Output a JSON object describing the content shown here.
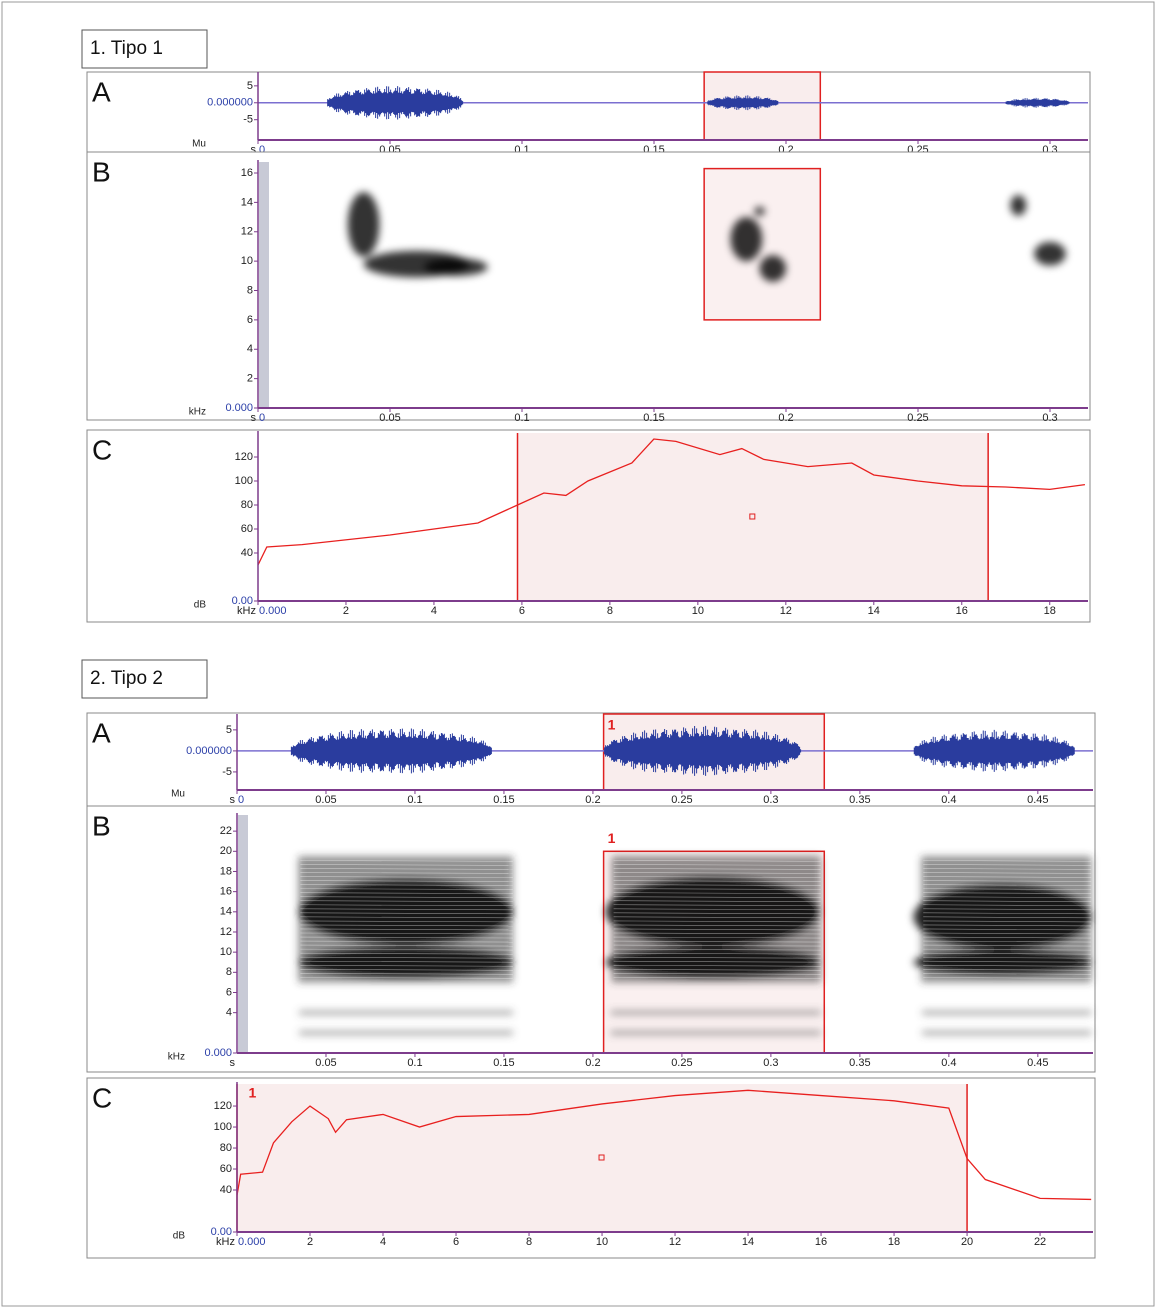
{
  "figures": [
    {
      "title": "1. Tipo 1",
      "waveform": {
        "type": "waveform",
        "letter": "A",
        "unit": "Mu",
        "x_unit": "s",
        "ylim": [
          -11,
          8.5
        ],
        "yticks": [
          5,
          {
            "value": 0,
            "label": "0.000000"
          },
          -5
        ],
        "xlim": [
          0,
          0.3144
        ],
        "xticks": [
          0,
          0.05,
          0.1,
          0.15,
          0.2,
          0.25,
          0.3
        ]
      },
      "spectrogram": {
        "type": "spectrogram",
        "letter": "B",
        "unit": "kHz",
        "x_unit": "s",
        "ylim": [
          0,
          16.75
        ],
        "yticks": [
          {
            "value": 0,
            "label": "0.000"
          },
          2,
          4,
          6,
          8,
          10,
          12,
          14,
          16
        ],
        "xlim": [
          0,
          0.3144
        ],
        "xticks": [
          0,
          0.05,
          0.1,
          0.15,
          0.2,
          0.25,
          0.3
        ]
      },
      "spectrum": {
        "type": "line",
        "letter": "C",
        "unit": "dB",
        "x_unit": "kHz",
        "ylim": [
          0,
          140
        ],
        "yticks": [
          {
            "value": 0,
            "label": "0.00"
          },
          40,
          60,
          80,
          100,
          120
        ],
        "xlim": [
          0,
          18.87
        ],
        "xticks": [
          {
            "value": 0,
            "label": "0.000"
          },
          2,
          4,
          6,
          8,
          10,
          12,
          14,
          16,
          18
        ],
        "color": "#e8201f",
        "x": [
          0,
          0.2,
          1,
          3,
          5,
          5.9,
          6.5,
          7,
          7.5,
          8.5,
          9,
          9.5,
          10.5,
          11,
          11.5,
          12.5,
          13.5,
          14,
          15,
          16,
          17,
          18,
          18.8
        ],
        "values": [
          30,
          45,
          47,
          55,
          65,
          80,
          90,
          88,
          100,
          115,
          135,
          133,
          122,
          127,
          118,
          112,
          115,
          105,
          100,
          96,
          95,
          93,
          97
        ]
      }
    },
    {
      "title": "2. Tipo 2",
      "selection_label": "1",
      "waveform": {
        "type": "waveform",
        "letter": "A",
        "unit": "Mu",
        "x_unit": "s",
        "ylim": [
          -9.3,
          8.3
        ],
        "yticks": [
          5,
          {
            "value": 0,
            "label": "0.000000"
          },
          -5
        ],
        "xlim": [
          0,
          0.481
        ],
        "xticks": [
          0,
          0.05,
          0.1,
          0.15,
          0.2,
          0.25,
          0.3,
          0.35,
          0.4,
          0.45
        ]
      },
      "spectrogram": {
        "type": "spectrogram",
        "letter": "B",
        "unit": "kHz",
        "x_unit": "s",
        "ylim": [
          0,
          23.6
        ],
        "yticks": [
          {
            "value": 0,
            "label": "0.000"
          },
          4,
          6,
          8,
          10,
          12,
          14,
          16,
          18,
          20,
          22
        ],
        "xlim": [
          0,
          0.481
        ],
        "xticks": [
          0.05,
          0.1,
          0.15,
          0.2,
          0.25,
          0.3,
          0.35,
          0.4,
          0.45
        ]
      },
      "spectrum": {
        "type": "line",
        "letter": "C",
        "unit": "dB",
        "x_unit": "kHz",
        "ylim": [
          0,
          141
        ],
        "yticks": [
          {
            "value": 0,
            "label": "0.00"
          },
          40,
          60,
          80,
          100,
          120
        ],
        "xlim": [
          0,
          23.45
        ],
        "xticks": [
          {
            "value": 0,
            "label": "0.000"
          },
          2,
          4,
          6,
          8,
          10,
          12,
          14,
          16,
          18,
          20,
          22
        ],
        "color": "#e8201f",
        "x": [
          0,
          0.1,
          0.7,
          1,
          1.5,
          2,
          2.5,
          2.7,
          3,
          4,
          5,
          6,
          8,
          10,
          12,
          14,
          16,
          18,
          19.5,
          20,
          20.5,
          22,
          23.4
        ],
        "values": [
          35,
          55,
          57,
          85,
          105,
          120,
          108,
          95,
          107,
          112,
          100,
          110,
          112,
          122,
          130,
          135,
          130,
          125,
          118,
          70,
          50,
          32,
          31
        ]
      }
    }
  ]
}
